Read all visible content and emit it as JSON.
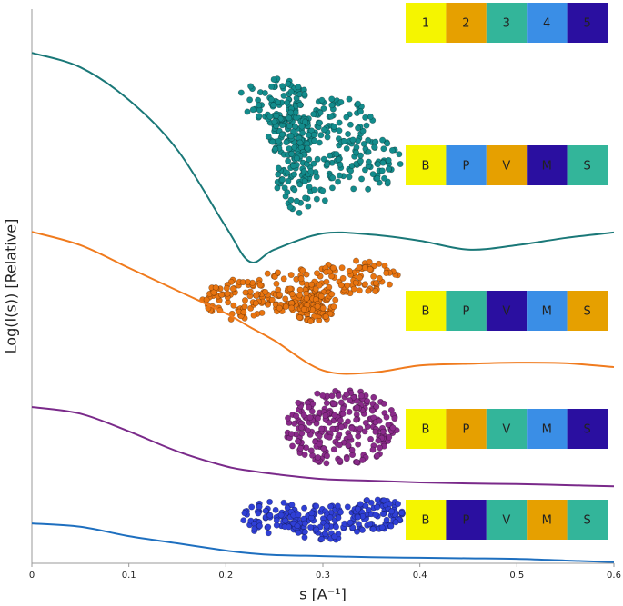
{
  "chart_data": {
    "type": "line",
    "x_label": "s [A⁻¹]",
    "y_label": "Log(I(s)) [Relative]",
    "x": [
      0,
      0.05,
      0.1,
      0.15,
      0.2,
      0.225,
      0.25,
      0.3,
      0.35,
      0.4,
      0.45,
      0.5,
      0.55,
      0.6
    ],
    "xlim": [
      0,
      0.6
    ],
    "xticks": [
      0,
      0.1,
      0.2,
      0.3,
      0.4,
      0.5,
      0.6
    ],
    "ylim": [
      0,
      100
    ],
    "series": [
      {
        "color": "#1a7878",
        "values": [
          92.1,
          89.5,
          83.6,
          74.6,
          60.7,
          54.4,
          56.6,
          59.5,
          59.3,
          58.2,
          56.6,
          57.4,
          58.7,
          59.7
        ]
      },
      {
        "color": "#f07b1e",
        "values": [
          59.8,
          57.4,
          53.3,
          49.2,
          45.1,
          42.6,
          40.2,
          34.8,
          34.4,
          35.7,
          36.0,
          36.2,
          36.1,
          35.4
        ]
      },
      {
        "color": "#7a2a8a",
        "values": [
          28.2,
          27.0,
          23.8,
          20.2,
          17.5,
          16.7,
          16.1,
          15.2,
          14.9,
          14.6,
          14.4,
          14.3,
          14.1,
          13.9
        ]
      },
      {
        "color": "#1e6fbf",
        "values": [
          7.2,
          6.6,
          4.9,
          3.6,
          2.3,
          1.8,
          1.5,
          1.3,
          1.1,
          1.0,
          0.9,
          0.8,
          0.5,
          0.2
        ]
      }
    ],
    "color_keys": [
      [
        {
          "label": "1",
          "color": "#f5f500"
        },
        {
          "label": "2",
          "color": "#e6a000"
        },
        {
          "label": "3",
          "color": "#33b59a"
        },
        {
          "label": "4",
          "color": "#3a8ee6"
        },
        {
          "label": "5",
          "color": "#2a0fa0"
        }
      ],
      [
        {
          "label": "B",
          "color": "#f5f500"
        },
        {
          "label": "P",
          "color": "#3a8ee6"
        },
        {
          "label": "V",
          "color": "#e6a000"
        },
        {
          "label": "M",
          "color": "#2a0fa0"
        },
        {
          "label": "S",
          "color": "#33b59a"
        }
      ],
      [
        {
          "label": "B",
          "color": "#f5f500"
        },
        {
          "label": "P",
          "color": "#33b59a"
        },
        {
          "label": "V",
          "color": "#2a0fa0"
        },
        {
          "label": "M",
          "color": "#3a8ee6"
        },
        {
          "label": "S",
          "color": "#e6a000"
        }
      ],
      [
        {
          "label": "B",
          "color": "#f5f500"
        },
        {
          "label": "P",
          "color": "#e6a000"
        },
        {
          "label": "V",
          "color": "#33b59a"
        },
        {
          "label": "M",
          "color": "#3a8ee6"
        },
        {
          "label": "S",
          "color": "#2a0fa0"
        }
      ],
      [
        {
          "label": "B",
          "color": "#f5f500"
        },
        {
          "label": "P",
          "color": "#2a0fa0"
        },
        {
          "label": "V",
          "color": "#33b59a"
        },
        {
          "label": "M",
          "color": "#e6a000"
        },
        {
          "label": "S",
          "color": "#33b59a"
        }
      ]
    ]
  }
}
